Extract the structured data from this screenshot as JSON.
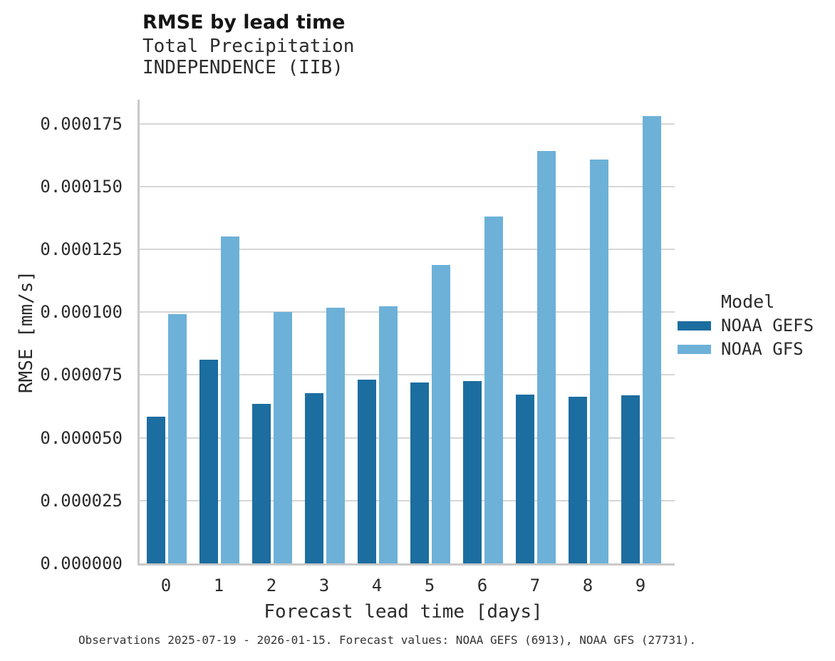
{
  "header": {
    "title": "RMSE by lead time",
    "subtitle_line1": "Total Precipitation",
    "subtitle_line2": "INDEPENDENCE (IIB)"
  },
  "legend": {
    "title": "Model"
  },
  "caption": "Observations 2025-07-19 - 2026-01-15. Forecast values: NOAA GEFS (6913), NOAA GFS (27731).",
  "chart_data": {
    "type": "bar",
    "title": "RMSE by lead time",
    "subtitle": [
      "Total Precipitation",
      "INDEPENDENCE (IIB)"
    ],
    "xlabel": "Forecast lead time [days]",
    "ylabel": "RMSE [mm/s]",
    "categories": [
      "0",
      "1",
      "2",
      "3",
      "4",
      "5",
      "6",
      "7",
      "8",
      "9"
    ],
    "series": [
      {
        "name": "NOAA GEFS",
        "color": "#1c6da0",
        "values": [
          5.85e-05,
          8.1e-05,
          6.35e-05,
          6.78e-05,
          7.32e-05,
          7.2e-05,
          7.26e-05,
          6.72e-05,
          6.62e-05,
          6.7e-05
        ]
      },
      {
        "name": "NOAA GFS",
        "color": "#6db1d8",
        "values": [
          9.92e-05,
          0.00013,
          0.0001001,
          0.0001017,
          0.0001022,
          0.0001188,
          0.000138,
          0.000164,
          0.0001607,
          0.0001781
        ]
      }
    ],
    "ylim": [
      0,
      0.0001845
    ],
    "yticks": [
      0,
      2.5e-05,
      5e-05,
      7.5e-05,
      0.0001,
      0.000125,
      0.00015,
      0.000175
    ],
    "ytick_labels": [
      "0.000000",
      "0.000025",
      "0.000050",
      "0.000075",
      "0.000100",
      "0.000125",
      "0.000150",
      "0.000175"
    ],
    "grid": "horizontal",
    "legend_title": "Model",
    "legend_position": "right"
  }
}
